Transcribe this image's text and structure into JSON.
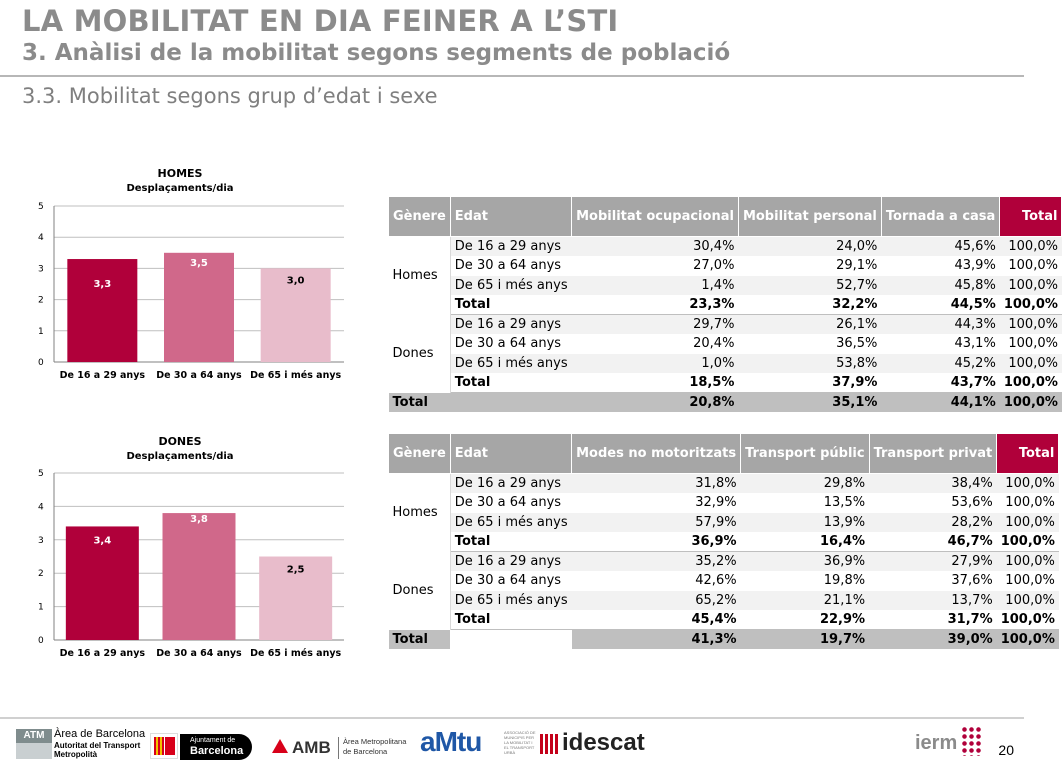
{
  "header": {
    "title": "LA MOBILITAT EN DIA FEINER A L’STI",
    "subtitle": "3. Anàlisi de la mobilitat segons segments de població",
    "section": "3.3. Mobilitat segons grup d’edat i sexe"
  },
  "chart_data": [
    {
      "type": "bar",
      "title": "HOMES",
      "subtitle": "Desplaçaments/dia",
      "categories": [
        "De 16 a 29 anys",
        "De 30 a 64 anys",
        "De 65 i més anys"
      ],
      "values": [
        3.3,
        3.5,
        3.0
      ],
      "value_labels": [
        "3,3",
        "3,5",
        "3,0"
      ],
      "colors": [
        "#b0003a",
        "#d0688a",
        "#e8bccb"
      ],
      "label_colors": [
        "#ffffff",
        "#ffffff",
        "#000000"
      ],
      "yticks": [
        "0",
        "1",
        "2",
        "3",
        "4",
        "5"
      ],
      "ylim": [
        0,
        5
      ],
      "grid": true
    },
    {
      "type": "bar",
      "title": "DONES",
      "subtitle": "Desplaçaments/dia",
      "categories": [
        "De 16 a 29 anys",
        "De 30 a 64 anys",
        "De 65 i més anys"
      ],
      "values": [
        3.4,
        3.8,
        2.5
      ],
      "value_labels": [
        "3,4",
        "3,8",
        "2,5"
      ],
      "colors": [
        "#b0003a",
        "#d0688a",
        "#e8bccb"
      ],
      "label_colors": [
        "#ffffff",
        "#ffffff",
        "#000000"
      ],
      "yticks": [
        "0",
        "1",
        "2",
        "3",
        "4",
        "5"
      ],
      "ylim": [
        0,
        5
      ],
      "grid": true
    }
  ],
  "table1": {
    "headers": [
      "Gènere",
      "Edat",
      "Mobilitat ocupacional",
      "Mobilitat personal",
      "Tornada a casa",
      "Total"
    ],
    "groups": [
      {
        "name": "Homes",
        "rows": [
          {
            "edat": "De 16 a 29 anys",
            "vals": [
              "30,4%",
              "24,0%",
              "45,6%",
              "100,0%"
            ]
          },
          {
            "edat": "De 30 a 64 anys",
            "vals": [
              "27,0%",
              "29,1%",
              "43,9%",
              "100,0%"
            ]
          },
          {
            "edat": "De 65 i més anys",
            "vals": [
              "1,4%",
              "52,7%",
              "45,8%",
              "100,0%"
            ]
          }
        ],
        "total": {
          "label": "Total",
          "vals": [
            "23,3%",
            "32,2%",
            "44,5%",
            "100,0%"
          ]
        }
      },
      {
        "name": "Dones",
        "rows": [
          {
            "edat": "De 16 a 29 anys",
            "vals": [
              "29,7%",
              "26,1%",
              "44,3%",
              "100,0%"
            ]
          },
          {
            "edat": "De 30 a 64 anys",
            "vals": [
              "20,4%",
              "36,5%",
              "43,1%",
              "100,0%"
            ]
          },
          {
            "edat": "De 65 i més anys",
            "vals": [
              "1,0%",
              "53,8%",
              "45,2%",
              "100,0%"
            ]
          }
        ],
        "total": {
          "label": "Total",
          "vals": [
            "18,5%",
            "37,9%",
            "43,7%",
            "100,0%"
          ]
        }
      }
    ],
    "grand": {
      "label": "Total",
      "vals": [
        "20,8%",
        "35,1%",
        "44,1%",
        "100,0%"
      ]
    }
  },
  "table2": {
    "headers": [
      "Gènere",
      "Edat",
      "Modes no motoritzats",
      "Transport públic",
      "Transport privat",
      "Total"
    ],
    "groups": [
      {
        "name": "Homes",
        "rows": [
          {
            "edat": "De 16 a 29 anys",
            "vals": [
              "31,8%",
              "29,8%",
              "38,4%",
              "100,0%"
            ]
          },
          {
            "edat": "De 30 a 64 anys",
            "vals": [
              "32,9%",
              "13,5%",
              "53,6%",
              "100,0%"
            ]
          },
          {
            "edat": "De 65 i més anys",
            "vals": [
              "57,9%",
              "13,9%",
              "28,2%",
              "100,0%"
            ]
          }
        ],
        "total": {
          "label": "Total",
          "vals": [
            "36,9%",
            "16,4%",
            "46,7%",
            "100,0%"
          ]
        }
      },
      {
        "name": "Dones",
        "rows": [
          {
            "edat": "De 16 a 29 anys",
            "vals": [
              "35,2%",
              "36,9%",
              "27,9%",
              "100,0%"
            ]
          },
          {
            "edat": "De 30 a 64 anys",
            "vals": [
              "42,6%",
              "19,8%",
              "37,6%",
              "100,0%"
            ]
          },
          {
            "edat": "De 65 i més anys",
            "vals": [
              "65,2%",
              "21,1%",
              "13,7%",
              "100,0%"
            ]
          }
        ],
        "total": {
          "label": "Total",
          "vals": [
            "45,4%",
            "22,9%",
            "31,7%",
            "100,0%"
          ]
        }
      }
    ],
    "grand": {
      "label": "Total",
      "vals": [
        "41,3%",
        "19,7%",
        "39,0%",
        "100,0%"
      ]
    }
  },
  "footer": {
    "logos": {
      "atm": {
        "badge": "ATM",
        "line1": "Àrea de Barcelona",
        "line2": "Autoritat del Transport",
        "line3": "Metropolità"
      },
      "ajuntament": {
        "line1": "Ajuntament de",
        "line2": "Barcelona"
      },
      "amb": {
        "mark": "AMB",
        "line1": "Àrea Metropolitana",
        "line2": "de Barcelona"
      },
      "amtu": {
        "mark": "aMtu",
        "small": "ASSOCIACIÓ DE MUNICIPIS PER LA MOBILITAT I EL TRANSPORT URBÀ"
      },
      "idescat": {
        "mark": "idescat"
      },
      "ierm": {
        "mark": "ierm"
      }
    },
    "page_number": "20"
  },
  "colors": {
    "accent": "#b0003a",
    "mid": "#d0688a",
    "light": "#e8bccb",
    "header_gray": "#a6a6a6"
  }
}
